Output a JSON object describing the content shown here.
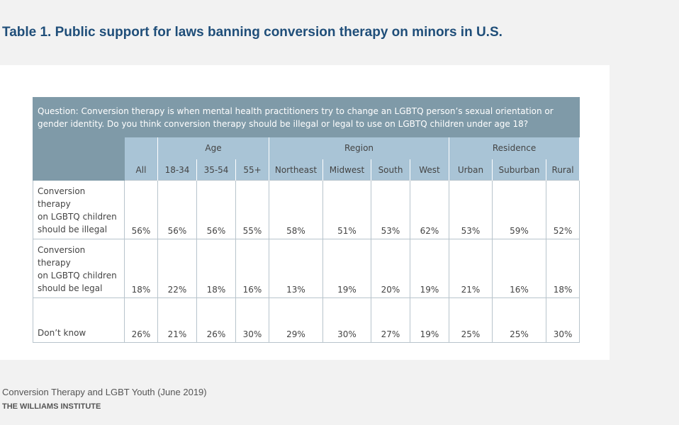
{
  "title": "Table 1. Public support for laws banning conversion therapy on minors in U.S.",
  "question": "Question: Conversion therapy is when mental health practitioners try to change an LGBTQ person’s sexual orientation or gender identity. Do you think conversion therapy should be illegal or legal to use on LGBTQ children under age 18?",
  "groups": {
    "age": "Age",
    "region": "Region",
    "residence": "Residence"
  },
  "columns": [
    "All",
    "18-34",
    "35-54",
    "55+",
    "Northeast",
    "Midwest",
    "South",
    "West",
    "Urban",
    "Suburban",
    "Rural"
  ],
  "rows": [
    {
      "label_lines": [
        "Conversion therapy",
        "on LGBTQ children",
        "should be illegal"
      ],
      "values": [
        "56%",
        "56%",
        "56%",
        "55%",
        "58%",
        "51%",
        "53%",
        "62%",
        "53%",
        "59%",
        "52%"
      ]
    },
    {
      "label_lines": [
        "Conversion therapy",
        "on LGBTQ children",
        "should be legal"
      ],
      "values": [
        "18%",
        "22%",
        "18%",
        "16%",
        "13%",
        "19%",
        "20%",
        "19%",
        "21%",
        "16%",
        "18%"
      ]
    },
    {
      "label_lines": [
        "Don’t know"
      ],
      "values": [
        "26%",
        "21%",
        "26%",
        "30%",
        "29%",
        "30%",
        "27%",
        "19%",
        "25%",
        "25%",
        "30%"
      ]
    }
  ],
  "footer": {
    "source": "Conversion Therapy and LGBT Youth (June 2019)",
    "org": "THE WILLIAMS INSTITUTE"
  },
  "colors": {
    "title": "#1f4e79",
    "question_bg": "#7f9aa8",
    "header_bg": "#a9c4d6",
    "page_bg": "#f2f2f2"
  }
}
